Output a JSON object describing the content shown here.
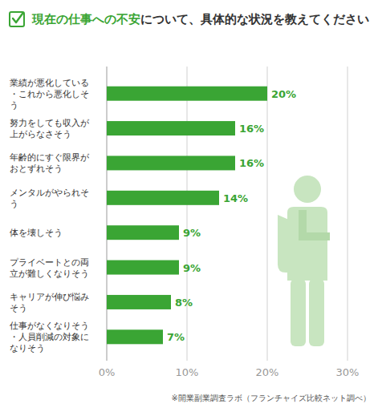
{
  "chart_data": {
    "type": "bar",
    "title": "現在の仕事への不安について、具体的な状況を教えてください",
    "categories": [
      "業績が悪化している・これから悪化しそう",
      "努力をしても収入が上がらなさそう",
      "年齢的にすぐ限界がおとずれそう",
      "メンタルがやられそう",
      "体を壊しそう",
      "プライベートとの両立が難しくなりそう",
      "キャリアが伸び悩みそう",
      "仕事がなくなりそう・人員削減の対象になりそう"
    ],
    "values": [
      20,
      16,
      16,
      14,
      9,
      9,
      8,
      7
    ],
    "value_labels": [
      "20%",
      "16%",
      "16%",
      "14%",
      "9%",
      "9%",
      "8%",
      "7%"
    ],
    "color": "#3aa534",
    "orientation": "horizontal",
    "data_labels": true,
    "grid": true,
    "xlim": [
      0,
      30
    ],
    "xticks": [
      {
        "value": 0,
        "label": "0%"
      },
      {
        "value": 10,
        "label": "10%"
      },
      {
        "value": 20,
        "label": "20%"
      },
      {
        "value": 30,
        "label": "30%"
      }
    ],
    "source": "※開業副業調査ラボ（フランチャイズ比較ネット調べ）"
  }
}
